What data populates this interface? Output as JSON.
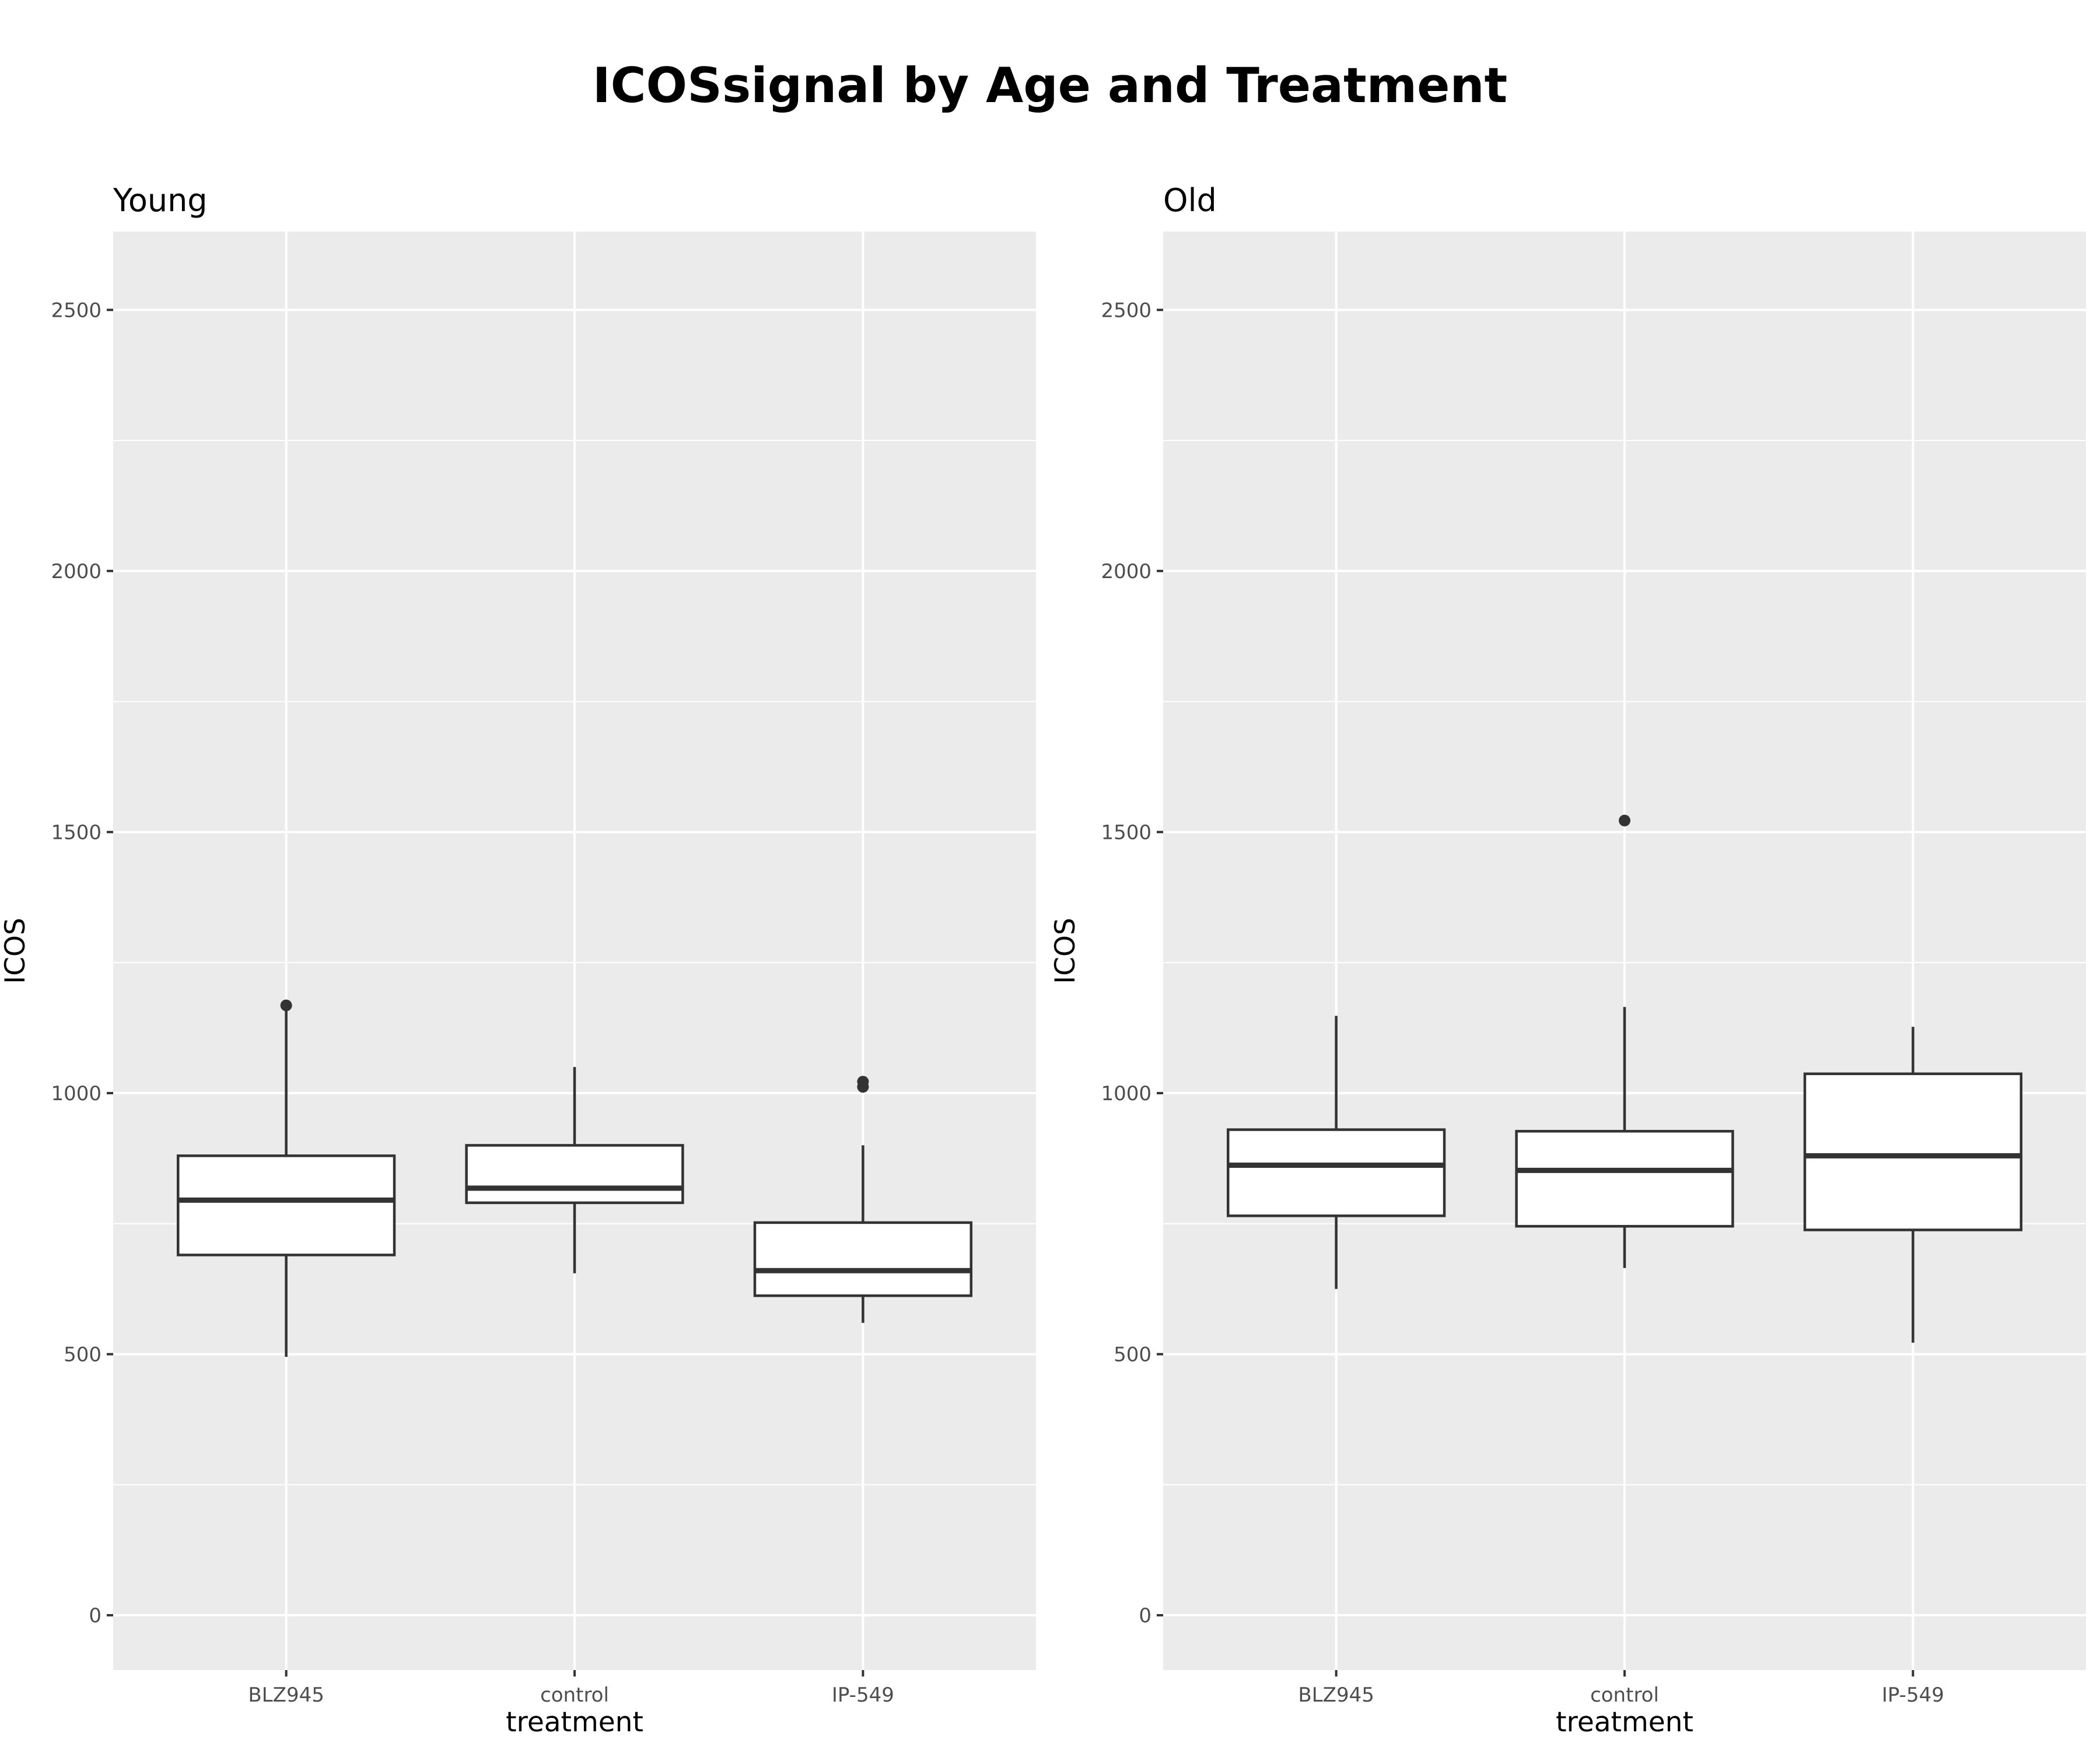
{
  "title": "ICOSsignal by Age and Treatment",
  "colors": {
    "panel_background": "#ebebeb",
    "grid_line": "#ffffff",
    "box_fill": "#ffffff",
    "box_stroke": "#333333",
    "tick_text": "#4d4d4d",
    "title_text": "#000000"
  },
  "chart_data": [
    {
      "type": "boxplot",
      "title": "Young",
      "xlabel": "treatment",
      "ylabel": "ICOS",
      "categories": [
        "BLZ945",
        "control",
        "IP-549"
      ],
      "ylim": [
        -105,
        2650
      ],
      "yticks": [
        0,
        500,
        1000,
        1500,
        2000,
        2500
      ],
      "ytick_labels": [
        "0",
        "500",
        "1000",
        "1500",
        "2000",
        "2500"
      ],
      "grid": true,
      "boxes": [
        {
          "category": "BLZ945",
          "whisker_low": 495,
          "q1": 690,
          "median": 795,
          "q3": 880,
          "whisker_high": 1160,
          "outliers": [
            1168
          ]
        },
        {
          "category": "control",
          "whisker_low": 655,
          "q1": 790,
          "median": 818,
          "q3": 900,
          "whisker_high": 1050,
          "outliers": []
        },
        {
          "category": "IP-549",
          "whisker_low": 560,
          "q1": 612,
          "median": 660,
          "q3": 752,
          "whisker_high": 900,
          "outliers": [
            1012,
            1022
          ]
        }
      ]
    },
    {
      "type": "boxplot",
      "title": "Old",
      "xlabel": "treatment",
      "ylabel": "ICOS",
      "categories": [
        "BLZ945",
        "control",
        "IP-549"
      ],
      "ylim": [
        -105,
        2650
      ],
      "yticks": [
        0,
        500,
        1000,
        1500,
        2000,
        2500
      ],
      "ytick_labels": [
        "0",
        "500",
        "1000",
        "1500",
        "2000",
        "2500"
      ],
      "grid": true,
      "boxes": [
        {
          "category": "BLZ945",
          "whisker_low": 625,
          "q1": 765,
          "median": 862,
          "q3": 930,
          "whisker_high": 1148,
          "outliers": []
        },
        {
          "category": "control",
          "whisker_low": 665,
          "q1": 745,
          "median": 852,
          "q3": 927,
          "whisker_high": 1165,
          "outliers": [
            1522
          ]
        },
        {
          "category": "IP-549",
          "whisker_low": 522,
          "q1": 738,
          "median": 880,
          "q3": 1037,
          "whisker_high": 1127,
          "outliers": []
        }
      ]
    }
  ]
}
